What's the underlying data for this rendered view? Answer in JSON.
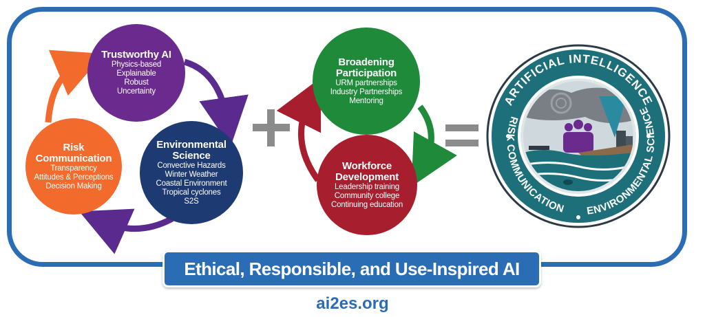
{
  "trustworthy_ai": {
    "title": "Trustworthy AI",
    "items": [
      "Physics-based",
      "Explainable",
      "Robust",
      "Uncertainty"
    ]
  },
  "environmental_science": {
    "title_1": "Environmental",
    "title_2": "Science",
    "items": [
      "Convective Hazards",
      "Winter Weather",
      "Coastal Environment",
      "Tropical cyclones",
      "S2S"
    ]
  },
  "risk_communication": {
    "title_1": "Risk",
    "title_2": "Communication",
    "items": [
      "Transparency",
      "Attitudes & Perceptions",
      "Decision Making"
    ]
  },
  "broadening_participation": {
    "title_1": "Broadening",
    "title_2": "Participation",
    "items": [
      "URM partnerships",
      "Industry Partnerships",
      "Mentoring"
    ]
  },
  "workforce_development": {
    "title_1": "Workforce",
    "title_2": "Development",
    "items": [
      "Leadership training",
      "Community college",
      "Continuing education"
    ]
  },
  "seal": {
    "top_text": "ARTIFICIAL INTELLIGENCE",
    "left_text": "RISK COMMUNICATION",
    "right_text": "ENVIRONMENTAL SCIENCE"
  },
  "banner": {
    "text": "Ethical, Responsible, and Use-Inspired AI"
  },
  "footer": {
    "url": "ai2es.org"
  },
  "colors": {
    "frame_blue": "#2b6db5",
    "trustworthy_purple": "#6a2a8e",
    "environmental_navy": "#1d3a72",
    "risk_orange": "#f26a2c",
    "broadening_green": "#1f8a3a",
    "workforce_red": "#a71f2e",
    "operator_gray": "#8b8b8b",
    "seal_teal": "#1d6f7a"
  }
}
